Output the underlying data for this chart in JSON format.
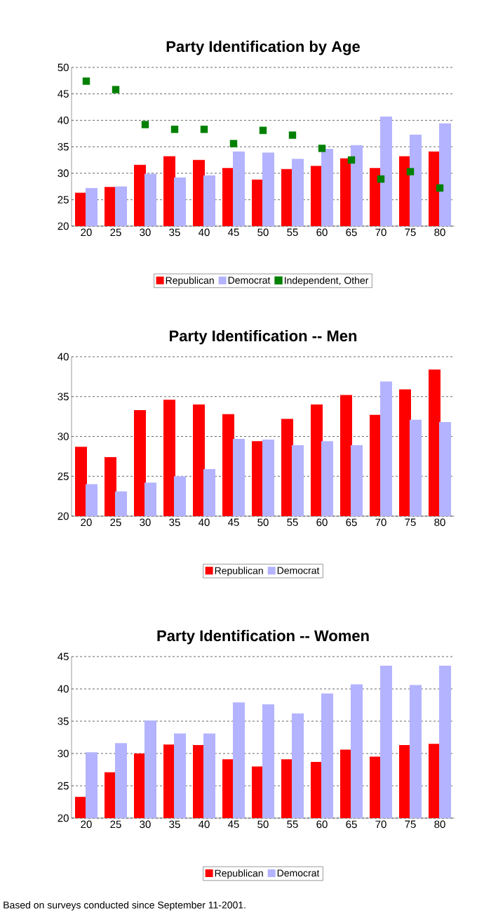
{
  "chart_data": [
    {
      "type": "bar",
      "title": "Party Identification by Age",
      "categories": [
        "20",
        "25",
        "30",
        "35",
        "40",
        "45",
        "50",
        "55",
        "60",
        "65",
        "70",
        "75",
        "80"
      ],
      "series": [
        {
          "name": "Republican",
          "color": "#ff0000",
          "values": [
            26.3,
            27.4,
            31.6,
            33.2,
            32.5,
            31.0,
            28.8,
            30.8,
            31.4,
            32.8,
            31.0,
            33.2,
            34.1
          ]
        },
        {
          "name": "Democrat",
          "color": "#b3b3ff",
          "values": [
            27.2,
            27.5,
            29.9,
            29.2,
            29.6,
            34.1,
            33.9,
            32.7,
            34.6,
            35.3,
            40.7,
            37.3,
            39.4
          ]
        },
        {
          "name": "Independent, Other",
          "type": "scatter",
          "marker": "square",
          "color": "#008000",
          "x": [
            "20",
            "25",
            "30",
            "35",
            "40",
            "45",
            "50",
            "55",
            "60",
            "65",
            "70",
            "75",
            "80"
          ],
          "values": [
            47.4,
            45.8,
            39.2,
            38.3,
            38.3,
            35.6,
            38.1,
            37.2,
            34.7,
            32.5,
            28.9,
            30.3,
            27.2
          ]
        }
      ],
      "ylim": [
        20,
        50
      ],
      "yticks": [
        20,
        25,
        30,
        35,
        40,
        45,
        50
      ],
      "grid": "y",
      "legend": "bottom"
    },
    {
      "type": "bar",
      "title": "Party Identification -- Men",
      "categories": [
        "20",
        "25",
        "30",
        "35",
        "40",
        "45",
        "50",
        "55",
        "60",
        "65",
        "70",
        "75",
        "80"
      ],
      "series": [
        {
          "name": "Republican",
          "color": "#ff0000",
          "values": [
            28.7,
            27.4,
            33.3,
            34.6,
            34.0,
            32.8,
            29.4,
            32.2,
            34.0,
            35.2,
            32.7,
            35.9,
            38.4
          ]
        },
        {
          "name": "Democrat",
          "color": "#b3b3ff",
          "values": [
            24.0,
            23.1,
            24.2,
            25.0,
            25.9,
            29.7,
            29.6,
            28.9,
            29.4,
            28.9,
            36.9,
            32.1,
            31.8
          ]
        }
      ],
      "ylim": [
        20,
        40
      ],
      "yticks": [
        20,
        25,
        30,
        35,
        40
      ],
      "grid": "y",
      "legend": "bottom"
    },
    {
      "type": "bar",
      "title": "Party Identification -- Women",
      "categories": [
        "20",
        "25",
        "30",
        "35",
        "40",
        "45",
        "50",
        "55",
        "60",
        "65",
        "70",
        "75",
        "80"
      ],
      "series": [
        {
          "name": "Republican",
          "color": "#ff0000",
          "values": [
            23.3,
            27.1,
            30.0,
            31.4,
            31.3,
            29.1,
            28.0,
            29.1,
            28.7,
            30.6,
            29.5,
            31.3,
            31.5
          ]
        },
        {
          "name": "Democrat",
          "color": "#b3b3ff",
          "values": [
            30.2,
            31.6,
            35.1,
            33.1,
            33.1,
            37.9,
            37.6,
            36.2,
            39.3,
            40.7,
            43.6,
            40.6,
            43.6
          ]
        }
      ],
      "ylim": [
        20,
        45
      ],
      "yticks": [
        20,
        25,
        30,
        35,
        40,
        45
      ],
      "grid": "y",
      "legend": "bottom",
      "annotations": [
        "Based on surveys conducted since September 11-2001."
      ]
    }
  ]
}
